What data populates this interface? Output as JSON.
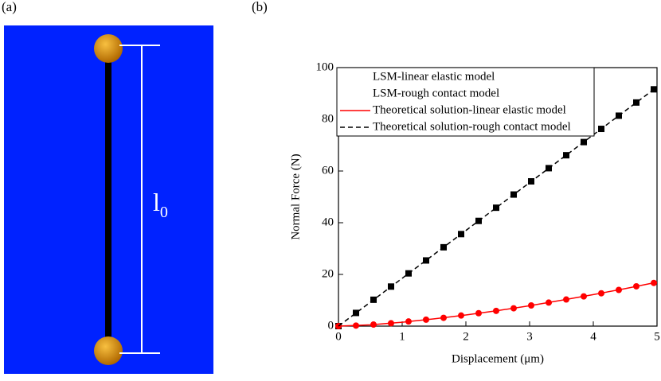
{
  "panel_labels": [
    "(a)",
    "(b)"
  ],
  "diagram": {
    "length_label": "l",
    "length_subscript": "0"
  },
  "chart_data": {
    "type": "line",
    "xlabel": "Displacement (μm)",
    "ylabel": "Normal Force (N)",
    "xlim": [
      0,
      5
    ],
    "xticks": [
      0,
      1,
      2,
      3,
      4,
      5
    ],
    "ylim": [
      0,
      100
    ],
    "yticks": [
      0,
      20,
      40,
      60,
      80,
      100
    ],
    "legend": "upper left",
    "series": [
      {
        "name": "LSM-linear elastic model",
        "color": "#000000",
        "mode": "markers",
        "marker": "square",
        "x": [
          0,
          0.275,
          0.55,
          0.825,
          1.1,
          1.375,
          1.65,
          1.925,
          2.2,
          2.475,
          2.75,
          3.025,
          3.3,
          3.575,
          3.85,
          4.125,
          4.4,
          4.675,
          4.95
        ],
        "values": [
          0,
          5.1,
          10.2,
          15.3,
          20.4,
          25.4,
          30.5,
          35.6,
          40.7,
          45.8,
          50.9,
          56.0,
          61.1,
          66.1,
          71.2,
          76.3,
          81.4,
          86.5,
          91.6
        ]
      },
      {
        "name": "LSM-rough contact model",
        "color": "#ff0000",
        "mode": "markers",
        "marker": "circle",
        "x": [
          0,
          0.275,
          0.55,
          0.825,
          1.1,
          1.375,
          1.65,
          1.925,
          2.2,
          2.475,
          2.75,
          3.025,
          3.3,
          3.575,
          3.85,
          4.125,
          4.4,
          4.675,
          4.95
        ],
        "values": [
          0,
          0.2,
          0.6,
          1.1,
          1.8,
          2.5,
          3.2,
          4.1,
          5.0,
          5.9,
          6.9,
          8.0,
          9.1,
          10.3,
          11.5,
          12.7,
          14.0,
          15.4,
          16.7
        ]
      },
      {
        "name": "Theoretical solution-linear elastic model",
        "color": "#ff0000",
        "mode": "line",
        "dash": false,
        "x": [
          0,
          0.5,
          1,
          1.5,
          2,
          2.5,
          3,
          3.5,
          4,
          4.5,
          5
        ],
        "values": [
          0,
          0.5,
          1.5,
          2.8,
          4.3,
          6.0,
          7.9,
          10.0,
          12.2,
          14.5,
          17.0
        ]
      },
      {
        "name": "Theoretical solution-rough contact model",
        "color": "#000000",
        "mode": "line",
        "dash": true,
        "x": [
          0,
          5
        ],
        "values": [
          0,
          92.5
        ]
      }
    ]
  }
}
